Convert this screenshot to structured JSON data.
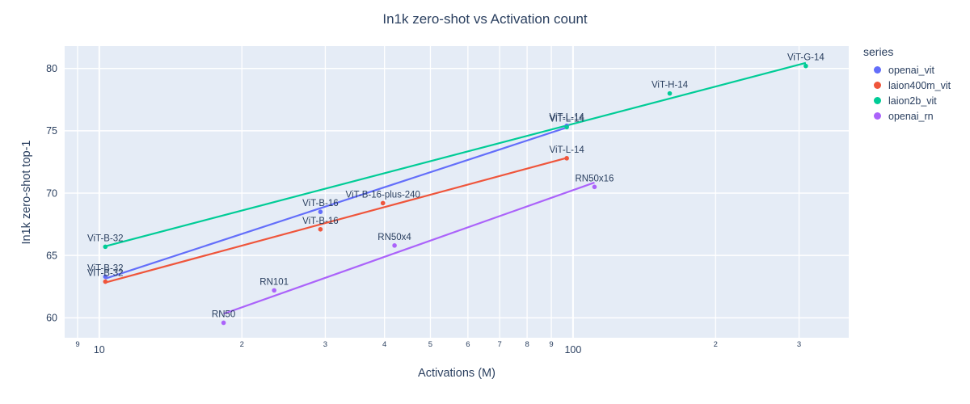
{
  "colors": {
    "paper_bg": "#FFFFFF",
    "plot_bg": "#E5ECF6",
    "grid": "#FFFFFF",
    "text": "#2A3F5F"
  },
  "chart_data": {
    "type": "scatter",
    "title": "In1k zero-shot vs Activation count",
    "xlabel": "Activations (M)",
    "ylabel": "In1k zero-shot top-1",
    "legend_title": "series",
    "legend_position": "right",
    "grid": true,
    "x_scale": "log",
    "x_range_log10": [
      0.927,
      2.582
    ],
    "ylim": [
      58.4,
      81.8
    ],
    "trendline": "ols-on-log10x",
    "marker_size_px": 5.6,
    "series": [
      {
        "name": "openai_vit",
        "color": "#636EFA",
        "points": [
          {
            "label": "ViT-B-32",
            "x": 10.3,
            "y": 63.3
          },
          {
            "label": "ViT-B-16",
            "x": 29.3,
            "y": 68.5
          },
          {
            "label": "ViT-L-14",
            "x": 97,
            "y": 75.4
          }
        ]
      },
      {
        "name": "laion400m_vit",
        "color": "#EF553B",
        "points": [
          {
            "label": "ViT-B-32",
            "x": 10.3,
            "y": 62.9
          },
          {
            "label": "ViT-B-16",
            "x": 29.3,
            "y": 67.1
          },
          {
            "label": "ViT-B-16-plus-240",
            "x": 39.7,
            "y": 69.2
          },
          {
            "label": "ViT-L-14",
            "x": 97,
            "y": 72.8
          }
        ]
      },
      {
        "name": "laion2b_vit",
        "color": "#00CC96",
        "points": [
          {
            "label": "ViT-B-32",
            "x": 10.3,
            "y": 65.7
          },
          {
            "label": "ViT-L-14",
            "x": 97,
            "y": 75.3
          },
          {
            "label": "ViT-H-14",
            "x": 160,
            "y": 78.0
          },
          {
            "label": "ViT-G-14",
            "x": 310,
            "y": 80.2
          }
        ]
      },
      {
        "name": "openai_rn",
        "color": "#AB63FA",
        "points": [
          {
            "label": "RN50",
            "x": 18.3,
            "y": 59.6
          },
          {
            "label": "RN101",
            "x": 23.4,
            "y": 62.2
          },
          {
            "label": "RN50x4",
            "x": 42,
            "y": 65.8
          },
          {
            "label": "RN50x16",
            "x": 111,
            "y": 70.5
          }
        ]
      }
    ],
    "x_ticks": [
      {
        "value": 9,
        "label": "9",
        "major": false
      },
      {
        "value": 10,
        "label": "10",
        "major": true
      },
      {
        "value": 20,
        "label": "2",
        "major": false
      },
      {
        "value": 30,
        "label": "3",
        "major": false
      },
      {
        "value": 40,
        "label": "4",
        "major": false
      },
      {
        "value": 50,
        "label": "5",
        "major": false
      },
      {
        "value": 60,
        "label": "6",
        "major": false
      },
      {
        "value": 70,
        "label": "7",
        "major": false
      },
      {
        "value": 80,
        "label": "8",
        "major": false
      },
      {
        "value": 90,
        "label": "9",
        "major": false
      },
      {
        "value": 100,
        "label": "100",
        "major": true
      },
      {
        "value": 200,
        "label": "2",
        "major": false
      },
      {
        "value": 300,
        "label": "3",
        "major": false
      }
    ],
    "y_ticks": [
      {
        "value": 60,
        "label": "60"
      },
      {
        "value": 65,
        "label": "65"
      },
      {
        "value": 70,
        "label": "70"
      },
      {
        "value": 75,
        "label": "75"
      },
      {
        "value": 80,
        "label": "80"
      }
    ]
  }
}
